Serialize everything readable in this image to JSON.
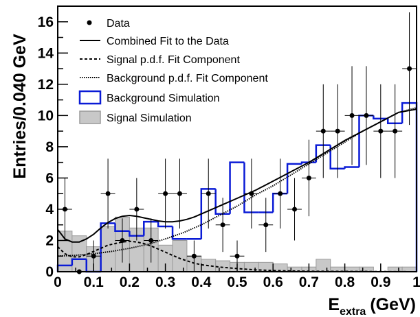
{
  "chart_data": {
    "type": "histogram",
    "xlabel": "E",
    "xlabel_subscript": "extra",
    "xlabel_unit": "(GeV)",
    "ylabel": "Entries/0.040 GeV",
    "xlim": [
      0,
      1
    ],
    "ylim": [
      0,
      17
    ],
    "xticks": [
      0,
      0.1,
      0.2,
      0.3,
      0.4,
      0.5,
      0.6,
      0.7,
      0.8,
      0.9,
      1
    ],
    "xtick_labels": [
      "0",
      "0.1",
      "0.2",
      "0.3",
      "0.4",
      "0.5",
      "0.6",
      "0.7",
      "0.8",
      "0.9",
      "1"
    ],
    "yticks": [
      0,
      2,
      4,
      6,
      8,
      10,
      12,
      14,
      16
    ],
    "ytick_labels": [
      "0",
      "2",
      "4",
      "6",
      "8",
      "10",
      "12",
      "14",
      "16"
    ],
    "bin_width": 0.04,
    "grid": false,
    "legend_position": "top-left",
    "legend": [
      {
        "label": "Data",
        "style": "marker"
      },
      {
        "label": "Combined Fit to the Data",
        "style": "solid-line"
      },
      {
        "label": "Signal p.d.f. Fit Component",
        "style": "dashed-line"
      },
      {
        "label": "Background p.d.f. Fit Component",
        "style": "dotted-line"
      },
      {
        "label": "Background Simulation",
        "style": "blue-outline-box"
      },
      {
        "label": "Signal Simulation",
        "style": "grey-filled-box"
      }
    ],
    "data_points": {
      "name": "Data",
      "x": [
        0.02,
        0.06,
        0.1,
        0.14,
        0.18,
        0.22,
        0.26,
        0.3,
        0.34,
        0.38,
        0.42,
        0.46,
        0.5,
        0.54,
        0.58,
        0.62,
        0.66,
        0.7,
        0.74,
        0.78,
        0.82,
        0.86,
        0.9,
        0.94,
        0.98
      ],
      "y": [
        4,
        0,
        1,
        5,
        2,
        4,
        2,
        5,
        5,
        1,
        5,
        3,
        1,
        5,
        3,
        5,
        4,
        6,
        9,
        9,
        10,
        10,
        9,
        9,
        13
      ]
    },
    "background_simulation": {
      "name": "Background Simulation",
      "bin_edges": [
        0,
        0.04,
        0.08,
        0.12,
        0.16,
        0.2,
        0.24,
        0.28,
        0.32,
        0.36,
        0.4,
        0.44,
        0.48,
        0.52,
        0.56,
        0.6,
        0.64,
        0.68,
        0.72,
        0.76,
        0.8,
        0.84,
        0.88,
        0.92,
        0.96,
        1.0
      ],
      "values": [
        0.4,
        0.8,
        0.0,
        3.1,
        2.6,
        2.3,
        3.2,
        2.9,
        2.1,
        2.1,
        5.3,
        3.7,
        7.0,
        3.8,
        3.8,
        5.0,
        6.9,
        7.0,
        8.1,
        6.6,
        6.7,
        10.0,
        9.8,
        9.5,
        10.8
      ]
    },
    "signal_simulation": {
      "name": "Signal Simulation",
      "bin_edges": [
        0,
        0.04,
        0.08,
        0.12,
        0.16,
        0.2,
        0.24,
        0.28,
        0.32,
        0.36,
        0.4,
        0.44,
        0.48,
        0.52,
        0.56,
        0.6,
        0.64,
        0.68,
        0.72,
        0.76,
        0.8,
        0.84,
        0.88,
        0.92,
        0.96,
        1.0
      ],
      "values": [
        2.6,
        2.3,
        1.6,
        2.9,
        3.5,
        2.8,
        2.8,
        1.7,
        2.0,
        1.0,
        0.8,
        0.7,
        0.6,
        0.6,
        0.6,
        0.5,
        0.3,
        0.3,
        0.8,
        0.3,
        0.3,
        0.3,
        0.0,
        0.3,
        0.3
      ]
    },
    "fit_combined": {
      "name": "Combined Fit to the Data",
      "x": [
        0,
        0.02,
        0.04,
        0.06,
        0.08,
        0.1,
        0.12,
        0.14,
        0.16,
        0.18,
        0.2,
        0.22,
        0.24,
        0.26,
        0.28,
        0.3,
        0.32,
        0.34,
        0.36,
        0.38,
        0.4,
        0.45,
        0.5,
        0.55,
        0.6,
        0.65,
        0.7,
        0.75,
        0.8,
        0.85,
        0.9,
        0.95,
        1.0
      ],
      "y": [
        2.7,
        2.1,
        1.9,
        1.9,
        2.1,
        2.4,
        2.8,
        3.15,
        3.4,
        3.55,
        3.6,
        3.55,
        3.45,
        3.35,
        3.25,
        3.2,
        3.2,
        3.25,
        3.35,
        3.5,
        3.7,
        4.2,
        4.7,
        5.2,
        5.8,
        6.4,
        7.0,
        7.7,
        8.4,
        9.0,
        9.6,
        10.2,
        10.4
      ]
    },
    "fit_signal": {
      "name": "Signal p.d.f. Fit Component",
      "x": [
        0,
        0.02,
        0.04,
        0.06,
        0.08,
        0.1,
        0.12,
        0.14,
        0.16,
        0.18,
        0.2,
        0.22,
        0.24,
        0.26,
        0.28,
        0.3,
        0.32,
        0.34,
        0.36,
        0.38,
        0.4,
        0.45,
        0.5,
        0.55,
        0.6,
        0.65,
        0.7,
        1.0
      ],
      "y": [
        1.6,
        1.15,
        0.95,
        0.95,
        1.1,
        1.3,
        1.5,
        1.7,
        1.8,
        1.9,
        1.95,
        1.9,
        1.8,
        1.65,
        1.45,
        1.25,
        1.05,
        0.85,
        0.7,
        0.55,
        0.45,
        0.3,
        0.2,
        0.12,
        0.08,
        0.05,
        0.03,
        0.0
      ]
    },
    "fit_background": {
      "name": "Background p.d.f. Fit Component",
      "x": [
        0,
        0.05,
        0.1,
        0.15,
        0.2,
        0.25,
        0.3,
        0.35,
        0.4,
        0.45,
        0.5,
        0.55,
        0.6,
        0.65,
        0.7,
        0.75,
        0.8,
        0.85,
        0.9,
        0.95,
        1.0
      ],
      "y": [
        1.0,
        1.05,
        1.15,
        1.3,
        1.5,
        1.75,
        2.1,
        2.5,
        3.0,
        3.6,
        4.2,
        4.9,
        5.5,
        6.2,
        6.9,
        7.6,
        8.3,
        9.0,
        9.6,
        10.2,
        10.5
      ]
    }
  }
}
